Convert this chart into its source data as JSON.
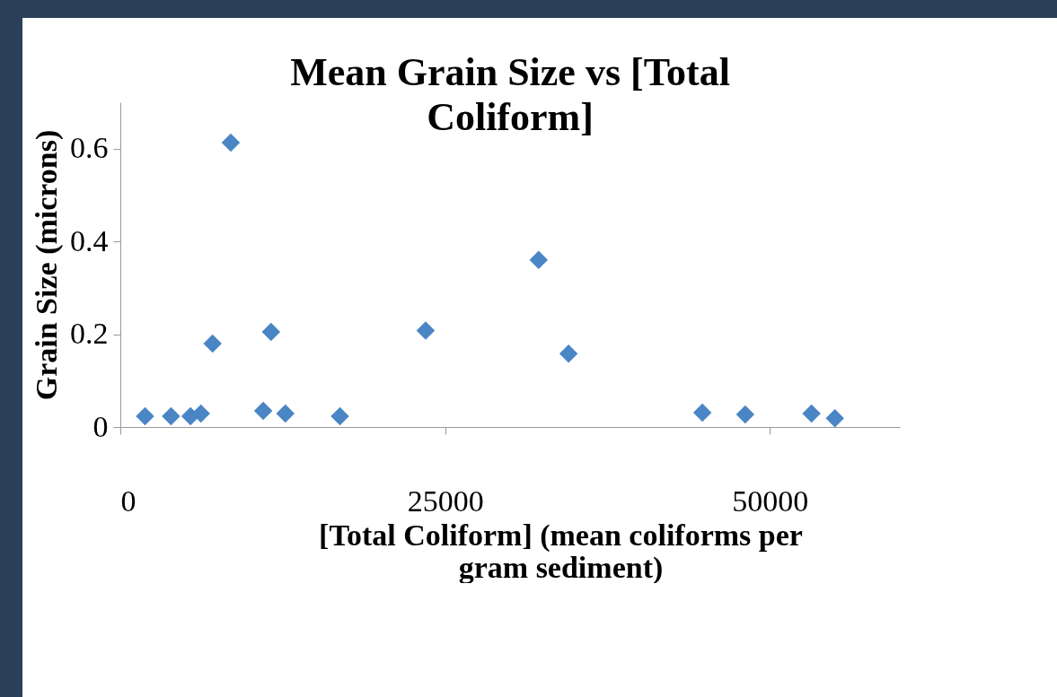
{
  "chart_data": {
    "type": "scatter",
    "title": "Mean Grain Size vs [Total Coliform]",
    "xlabel": "[Total Coliform] (mean coliforms per gram sediment)",
    "ylabel": "Grain Size (microns)",
    "x": [
      1900,
      3900,
      5400,
      6200,
      7100,
      8500,
      11000,
      11600,
      12700,
      16900,
      23500,
      32200,
      34500,
      44800,
      48100,
      53200,
      55000
    ],
    "series": [
      {
        "color": "#4a86c5",
        "values": [
          0.023,
          0.023,
          0.023,
          0.029,
          0.18,
          0.613,
          0.035,
          0.205,
          0.029,
          0.023,
          0.208,
          0.36,
          0.158,
          0.031,
          0.027,
          0.029,
          0.019
        ]
      }
    ],
    "xlim": [
      0,
      60000
    ],
    "xticks": [
      0,
      25000,
      50000
    ],
    "ylim": [
      0,
      0.7
    ],
    "yticks": [
      0,
      0.2,
      0.4,
      0.6
    ],
    "marker": "diamond",
    "grid": false
  }
}
